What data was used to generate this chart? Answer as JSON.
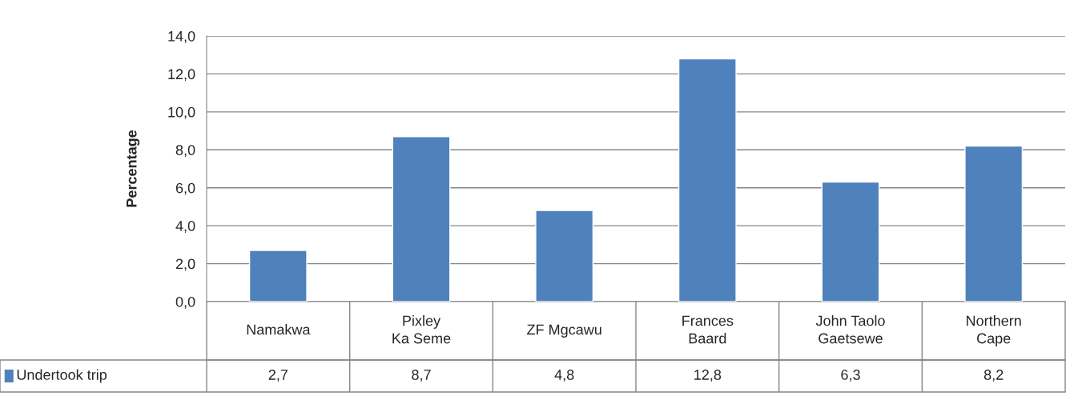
{
  "chart_data": {
    "type": "bar",
    "ylabel": "Percentage",
    "categories": [
      "Namakwa",
      "Pixley Ka Seme",
      "ZF Mgcawu",
      "Frances Baard",
      "John Taolo Gaetsewe",
      "Northern Cape"
    ],
    "series": [
      {
        "name": "Undertook trip",
        "color": "#4f81bd",
        "values": [
          2.7,
          8.7,
          4.8,
          12.8,
          6.3,
          8.2
        ],
        "value_labels": [
          "2,7",
          "8,7",
          "4,8",
          "12,8",
          "6,3",
          "8,2"
        ]
      }
    ],
    "ylim": [
      0,
      14
    ],
    "yticks": [
      {
        "value": 0,
        "label": "0,0"
      },
      {
        "value": 2,
        "label": "2,0"
      },
      {
        "value": 4,
        "label": "4,0"
      },
      {
        "value": 6,
        "label": "6,0"
      },
      {
        "value": 8,
        "label": "8,0"
      },
      {
        "value": 10,
        "label": "10,0"
      },
      {
        "value": 12,
        "label": "12,0"
      },
      {
        "value": 14,
        "label": "14,0"
      }
    ],
    "grid": "y",
    "legend": "bottom left"
  }
}
